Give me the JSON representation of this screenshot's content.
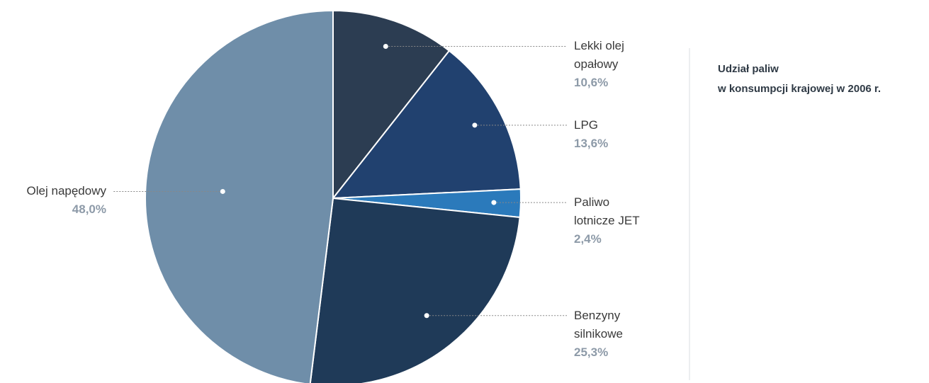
{
  "chart_data": {
    "type": "pie",
    "title": "Udział paliw",
    "subtitle": "w konsumpcji krajowej w 2006 r.",
    "categories": [
      "Lekki olej opałowy",
      "LPG",
      "Paliwo lotnicze JET",
      "Benzyny silnikowe",
      "Olej napędowy"
    ],
    "values": [
      10.6,
      13.6,
      2.4,
      25.3,
      48.0
    ],
    "value_labels": [
      "10,6%",
      "13,6%",
      "2,4%",
      "25,3%",
      "48,0%"
    ],
    "colors": [
      "#2c3d52",
      "#21416f",
      "#2b7abb",
      "#1f3a58",
      "#6f8ea9"
    ]
  }
}
